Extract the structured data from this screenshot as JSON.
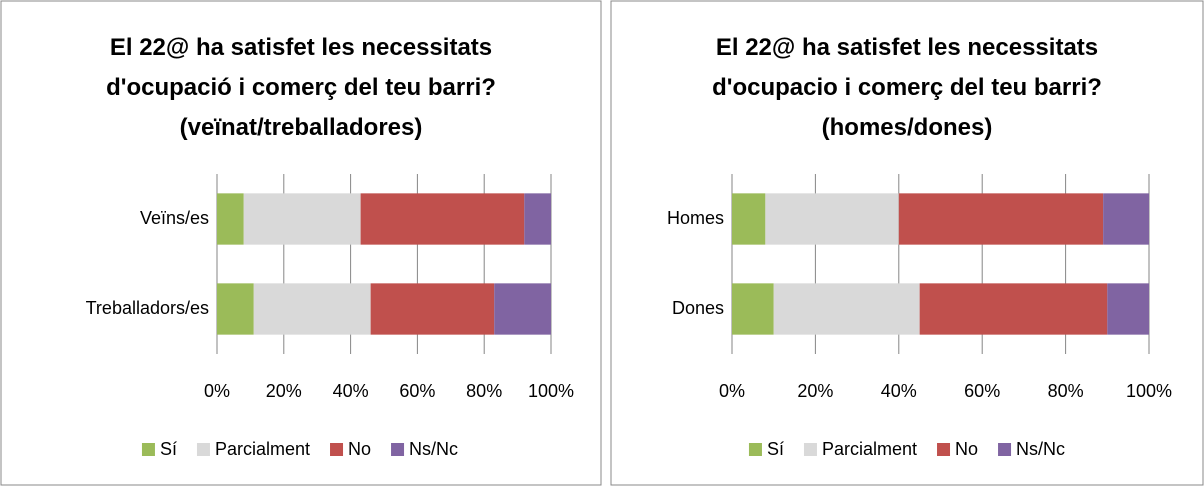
{
  "chart_data": [
    {
      "type": "bar",
      "orientation": "horizontal",
      "stacked": true,
      "title": "El 22@ ha satisfet les necessitats d'ocupació i comerç del teu barri? (veïnat/treballadores)",
      "categories": [
        "Veïns/es",
        "Treballadors/es"
      ],
      "series": [
        {
          "name": "Sí",
          "color": "#9bbb59",
          "values": [
            8,
            11
          ]
        },
        {
          "name": "Parcialment",
          "color": "#d9d9d9",
          "values": [
            35,
            35
          ]
        },
        {
          "name": "No",
          "color": "#c0504d",
          "values": [
            49,
            37
          ]
        },
        {
          "name": "Ns/Nc",
          "color": "#8064a2",
          "values": [
            8,
            17
          ]
        }
      ],
      "xlim": [
        0,
        100
      ],
      "xticks": [
        {
          "value": 0,
          "label": "0%"
        },
        {
          "value": 20,
          "label": "20%"
        },
        {
          "value": 40,
          "label": "40%"
        },
        {
          "value": 60,
          "label": "60%"
        },
        {
          "value": 80,
          "label": "80%"
        },
        {
          "value": 100,
          "label": "100%"
        }
      ],
      "grid": true,
      "legend": "bottom"
    },
    {
      "type": "bar",
      "orientation": "horizontal",
      "stacked": true,
      "title": "El 22@ ha satisfet les necessitats d'ocupacio i comerç del teu barri? (homes/dones)",
      "categories": [
        "Homes",
        "Dones"
      ],
      "series": [
        {
          "name": "Sí",
          "color": "#9bbb59",
          "values": [
            8,
            10
          ]
        },
        {
          "name": "Parcialment",
          "color": "#d9d9d9",
          "values": [
            32,
            35
          ]
        },
        {
          "name": "No",
          "color": "#c0504d",
          "values": [
            49,
            45
          ]
        },
        {
          "name": "Ns/Nc",
          "color": "#8064a2",
          "values": [
            11,
            10
          ]
        }
      ],
      "xlim": [
        0,
        100
      ],
      "xticks": [
        {
          "value": 0,
          "label": "0%"
        },
        {
          "value": 20,
          "label": "20%"
        },
        {
          "value": 40,
          "label": "40%"
        },
        {
          "value": 60,
          "label": "60%"
        },
        {
          "value": 80,
          "label": "80%"
        },
        {
          "value": 100,
          "label": "100%"
        }
      ],
      "grid": true,
      "legend": "bottom"
    }
  ]
}
